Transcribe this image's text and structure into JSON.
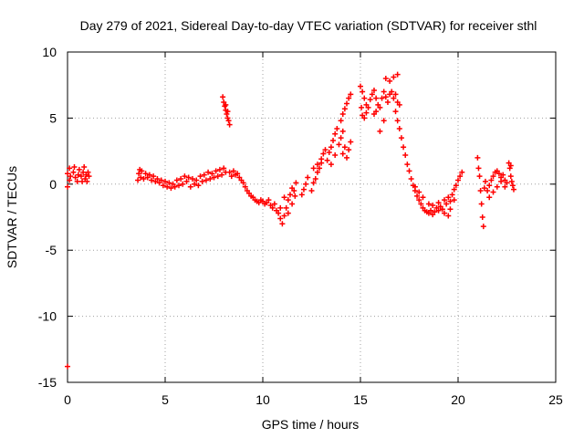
{
  "chart_data": {
    "type": "scatter",
    "title": "Day 279 of 2021, Sidereal Day-to-day VTEC variation (SDTVAR) for receiver sthl",
    "xlabel": "GPS time / hours",
    "ylabel": "SDTVAR / TECUs",
    "xlim": [
      0,
      25
    ],
    "ylim": [
      -15,
      10
    ],
    "xticks": [
      0,
      5,
      10,
      15,
      20,
      25
    ],
    "yticks": [
      -15,
      -10,
      -5,
      0,
      5,
      10
    ],
    "xtick_labels": [
      "0",
      "5",
      "10",
      "15",
      "20",
      "25"
    ],
    "ytick_labels": [
      "-15",
      "-10",
      "-5",
      "0",
      "5",
      "10"
    ],
    "grid": true,
    "marker": "+",
    "color": "#ff0000",
    "series": [
      {
        "name": "SDTVAR",
        "points": [
          [
            0.0,
            -13.8
          ],
          [
            0.0,
            -0.2
          ],
          [
            0.0,
            0.8
          ],
          [
            0.1,
            1.2
          ],
          [
            0.1,
            0.3
          ],
          [
            0.15,
            0.6
          ],
          [
            0.3,
            0.9
          ],
          [
            0.35,
            1.3
          ],
          [
            0.4,
            0.5
          ],
          [
            0.5,
            0.2
          ],
          [
            0.55,
            0.7
          ],
          [
            0.6,
            1.1
          ],
          [
            0.7,
            0.6
          ],
          [
            0.75,
            0.2
          ],
          [
            0.8,
            0.9
          ],
          [
            0.85,
            1.3
          ],
          [
            0.9,
            0.4
          ],
          [
            0.95,
            0.7
          ],
          [
            1.0,
            0.2
          ],
          [
            1.05,
            0.9
          ],
          [
            1.1,
            0.6
          ],
          [
            3.6,
            0.3
          ],
          [
            3.65,
            0.8
          ],
          [
            3.7,
            1.1
          ],
          [
            3.75,
            0.5
          ],
          [
            3.8,
            1.0
          ],
          [
            3.9,
            0.4
          ],
          [
            4.0,
            0.8
          ],
          [
            4.1,
            0.5
          ],
          [
            4.2,
            0.7
          ],
          [
            4.3,
            0.3
          ],
          [
            4.4,
            0.6
          ],
          [
            4.5,
            0.2
          ],
          [
            4.6,
            0.4
          ],
          [
            4.7,
            0.1
          ],
          [
            4.8,
            0.3
          ],
          [
            4.9,
            -0.1
          ],
          [
            5.0,
            0.2
          ],
          [
            5.1,
            -0.2
          ],
          [
            5.2,
            0.1
          ],
          [
            5.3,
            -0.3
          ],
          [
            5.4,
            0.0
          ],
          [
            5.5,
            -0.2
          ],
          [
            5.6,
            0.3
          ],
          [
            5.7,
            -0.1
          ],
          [
            5.8,
            0.4
          ],
          [
            5.9,
            0.0
          ],
          [
            6.0,
            0.6
          ],
          [
            6.1,
            0.2
          ],
          [
            6.2,
            0.5
          ],
          [
            6.3,
            -0.2
          ],
          [
            6.4,
            0.4
          ],
          [
            6.5,
            0.0
          ],
          [
            6.6,
            0.3
          ],
          [
            6.7,
            -0.1
          ],
          [
            6.8,
            0.6
          ],
          [
            6.9,
            0.2
          ],
          [
            7.0,
            0.7
          ],
          [
            7.1,
            0.3
          ],
          [
            7.2,
            0.9
          ],
          [
            7.3,
            0.4
          ],
          [
            7.4,
            0.8
          ],
          [
            7.5,
            0.5
          ],
          [
            7.6,
            1.0
          ],
          [
            7.7,
            0.6
          ],
          [
            7.8,
            1.1
          ],
          [
            7.9,
            0.7
          ],
          [
            8.0,
            1.2
          ],
          [
            8.1,
            0.9
          ],
          [
            7.95,
            6.6
          ],
          [
            8.0,
            6.2
          ],
          [
            8.05,
            5.9
          ],
          [
            8.1,
            5.6
          ],
          [
            8.15,
            5.3
          ],
          [
            8.2,
            5.0
          ],
          [
            8.25,
            4.8
          ],
          [
            8.3,
            4.5
          ],
          [
            8.1,
            6.0
          ],
          [
            8.2,
            5.5
          ],
          [
            8.3,
            0.9
          ],
          [
            8.4,
            0.6
          ],
          [
            8.5,
            1.0
          ],
          [
            8.6,
            0.7
          ],
          [
            8.7,
            0.8
          ],
          [
            8.8,
            0.5
          ],
          [
            8.9,
            0.3
          ],
          [
            9.0,
            0.1
          ],
          [
            9.1,
            -0.2
          ],
          [
            9.2,
            -0.5
          ],
          [
            9.3,
            -0.7
          ],
          [
            9.4,
            -0.9
          ],
          [
            9.5,
            -1.0
          ],
          [
            9.6,
            -1.2
          ],
          [
            9.7,
            -1.3
          ],
          [
            9.8,
            -1.4
          ],
          [
            9.9,
            -1.2
          ],
          [
            10.0,
            -1.3
          ],
          [
            10.1,
            -1.5
          ],
          [
            10.2,
            -1.4
          ],
          [
            10.3,
            -1.2
          ],
          [
            10.4,
            -1.6
          ],
          [
            10.5,
            -1.8
          ],
          [
            10.6,
            -1.5
          ],
          [
            10.7,
            -2.0
          ],
          [
            10.8,
            -2.2
          ],
          [
            10.9,
            -2.6
          ],
          [
            11.0,
            -3.0
          ],
          [
            11.1,
            -2.4
          ],
          [
            11.2,
            -1.8
          ],
          [
            11.3,
            -1.2
          ],
          [
            11.4,
            -0.8
          ],
          [
            11.5,
            -1.5
          ],
          [
            11.6,
            -0.5
          ],
          [
            11.7,
            0.1
          ],
          [
            10.9,
            -1.8
          ],
          [
            11.1,
            -1.0
          ],
          [
            11.3,
            -2.2
          ],
          [
            11.5,
            -0.3
          ],
          [
            11.65,
            -0.9
          ],
          [
            12.0,
            -0.8
          ],
          [
            12.1,
            -0.4
          ],
          [
            12.2,
            0.0
          ],
          [
            12.3,
            0.5
          ],
          [
            12.5,
            -0.5
          ],
          [
            12.6,
            0.1
          ],
          [
            12.7,
            0.4
          ],
          [
            12.8,
            0.9
          ],
          [
            12.9,
            1.2
          ],
          [
            13.0,
            1.6
          ],
          [
            12.6,
            1.2
          ],
          [
            12.8,
            1.5
          ],
          [
            13.0,
            1.9
          ],
          [
            13.1,
            2.3
          ],
          [
            13.2,
            2.6
          ],
          [
            13.3,
            1.8
          ],
          [
            13.4,
            2.4
          ],
          [
            13.5,
            2.8
          ],
          [
            13.6,
            3.3
          ],
          [
            13.7,
            3.8
          ],
          [
            13.8,
            4.2
          ],
          [
            13.5,
            1.5
          ],
          [
            13.7,
            2.2
          ],
          [
            13.9,
            3.0
          ],
          [
            14.0,
            3.5
          ],
          [
            14.1,
            4.0
          ],
          [
            14.0,
            4.8
          ],
          [
            14.1,
            5.3
          ],
          [
            14.2,
            5.7
          ],
          [
            14.3,
            6.1
          ],
          [
            14.4,
            6.5
          ],
          [
            14.5,
            6.8
          ],
          [
            14.3,
            2.0
          ],
          [
            14.4,
            2.6
          ],
          [
            14.5,
            3.2
          ],
          [
            14.2,
            2.8
          ],
          [
            14.1,
            2.3
          ],
          [
            15.0,
            7.4
          ],
          [
            15.1,
            7.0
          ],
          [
            15.2,
            6.5
          ],
          [
            15.3,
            6.0
          ],
          [
            15.05,
            5.8
          ],
          [
            15.1,
            5.2
          ],
          [
            15.2,
            5.0
          ],
          [
            15.3,
            5.4
          ],
          [
            15.4,
            5.8
          ],
          [
            15.5,
            6.4
          ],
          [
            15.6,
            6.8
          ],
          [
            15.7,
            7.1
          ],
          [
            15.8,
            6.5
          ],
          [
            15.9,
            6.0
          ],
          [
            16.0,
            5.8
          ],
          [
            15.7,
            5.3
          ],
          [
            15.8,
            5.5
          ],
          [
            16.1,
            6.5
          ],
          [
            16.2,
            7.0
          ],
          [
            16.3,
            6.6
          ],
          [
            16.4,
            6.2
          ],
          [
            16.5,
            6.8
          ],
          [
            16.6,
            7.0
          ],
          [
            16.7,
            6.5
          ],
          [
            16.8,
            6.8
          ],
          [
            16.9,
            6.2
          ],
          [
            17.0,
            6.0
          ],
          [
            16.0,
            4.0
          ],
          [
            16.2,
            4.8
          ],
          [
            16.3,
            8.0
          ],
          [
            16.5,
            7.8
          ],
          [
            16.7,
            8.1
          ],
          [
            16.9,
            8.3
          ],
          [
            16.8,
            5.5
          ],
          [
            16.9,
            4.8
          ],
          [
            17.0,
            4.2
          ],
          [
            17.1,
            3.5
          ],
          [
            17.2,
            2.8
          ],
          [
            17.3,
            2.2
          ],
          [
            17.4,
            1.5
          ],
          [
            17.5,
            1.0
          ],
          [
            17.6,
            0.4
          ],
          [
            17.7,
            -0.1
          ],
          [
            17.8,
            -0.5
          ],
          [
            17.9,
            -0.9
          ],
          [
            18.0,
            -1.2
          ],
          [
            18.1,
            -1.5
          ],
          [
            18.2,
            -1.8
          ],
          [
            18.3,
            -2.0
          ],
          [
            18.4,
            -2.1
          ],
          [
            18.5,
            -2.2
          ],
          [
            18.6,
            -2.0
          ],
          [
            18.7,
            -2.3
          ],
          [
            18.8,
            -2.1
          ],
          [
            18.9,
            -1.8
          ],
          [
            19.0,
            -2.0
          ],
          [
            19.1,
            -1.7
          ],
          [
            19.2,
            -1.9
          ],
          [
            19.3,
            -2.2
          ],
          [
            19.4,
            -1.5
          ],
          [
            19.5,
            -1.0
          ],
          [
            19.6,
            -1.3
          ],
          [
            19.7,
            -0.8
          ],
          [
            19.8,
            -0.4
          ],
          [
            19.9,
            -0.1
          ],
          [
            20.0,
            0.3
          ],
          [
            20.1,
            0.6
          ],
          [
            20.2,
            0.9
          ],
          [
            18.5,
            -1.5
          ],
          [
            18.7,
            -1.6
          ],
          [
            19.0,
            -1.4
          ],
          [
            19.3,
            -1.2
          ],
          [
            19.5,
            -2.4
          ],
          [
            19.6,
            -1.9
          ],
          [
            19.8,
            -1.2
          ],
          [
            17.8,
            -0.2
          ],
          [
            18.0,
            -0.6
          ],
          [
            18.2,
            -1.0
          ],
          [
            21.0,
            2.0
          ],
          [
            21.05,
            1.2
          ],
          [
            21.1,
            0.6
          ],
          [
            21.15,
            -0.5
          ],
          [
            21.2,
            -1.5
          ],
          [
            21.25,
            -2.5
          ],
          [
            21.3,
            -3.2
          ],
          [
            21.35,
            -0.3
          ],
          [
            21.4,
            0.2
          ],
          [
            21.5,
            -0.5
          ],
          [
            21.6,
            -0.1
          ],
          [
            21.7,
            0.3
          ],
          [
            21.8,
            0.6
          ],
          [
            21.9,
            0.9
          ],
          [
            22.0,
            1.0
          ],
          [
            22.1,
            0.8
          ],
          [
            22.2,
            0.5
          ],
          [
            22.3,
            0.7
          ],
          [
            22.4,
            0.3
          ],
          [
            22.5,
            0.1
          ],
          [
            21.6,
            -1.0
          ],
          [
            21.8,
            -0.6
          ],
          [
            22.0,
            -0.2
          ],
          [
            22.2,
            0.2
          ],
          [
            22.4,
            -0.2
          ],
          [
            22.6,
            1.6
          ],
          [
            22.65,
            1.2
          ],
          [
            22.7,
            0.6
          ],
          [
            22.75,
            0.2
          ],
          [
            22.8,
            -0.1
          ],
          [
            22.85,
            -0.4
          ],
          [
            22.7,
            1.4
          ]
        ]
      }
    ]
  }
}
